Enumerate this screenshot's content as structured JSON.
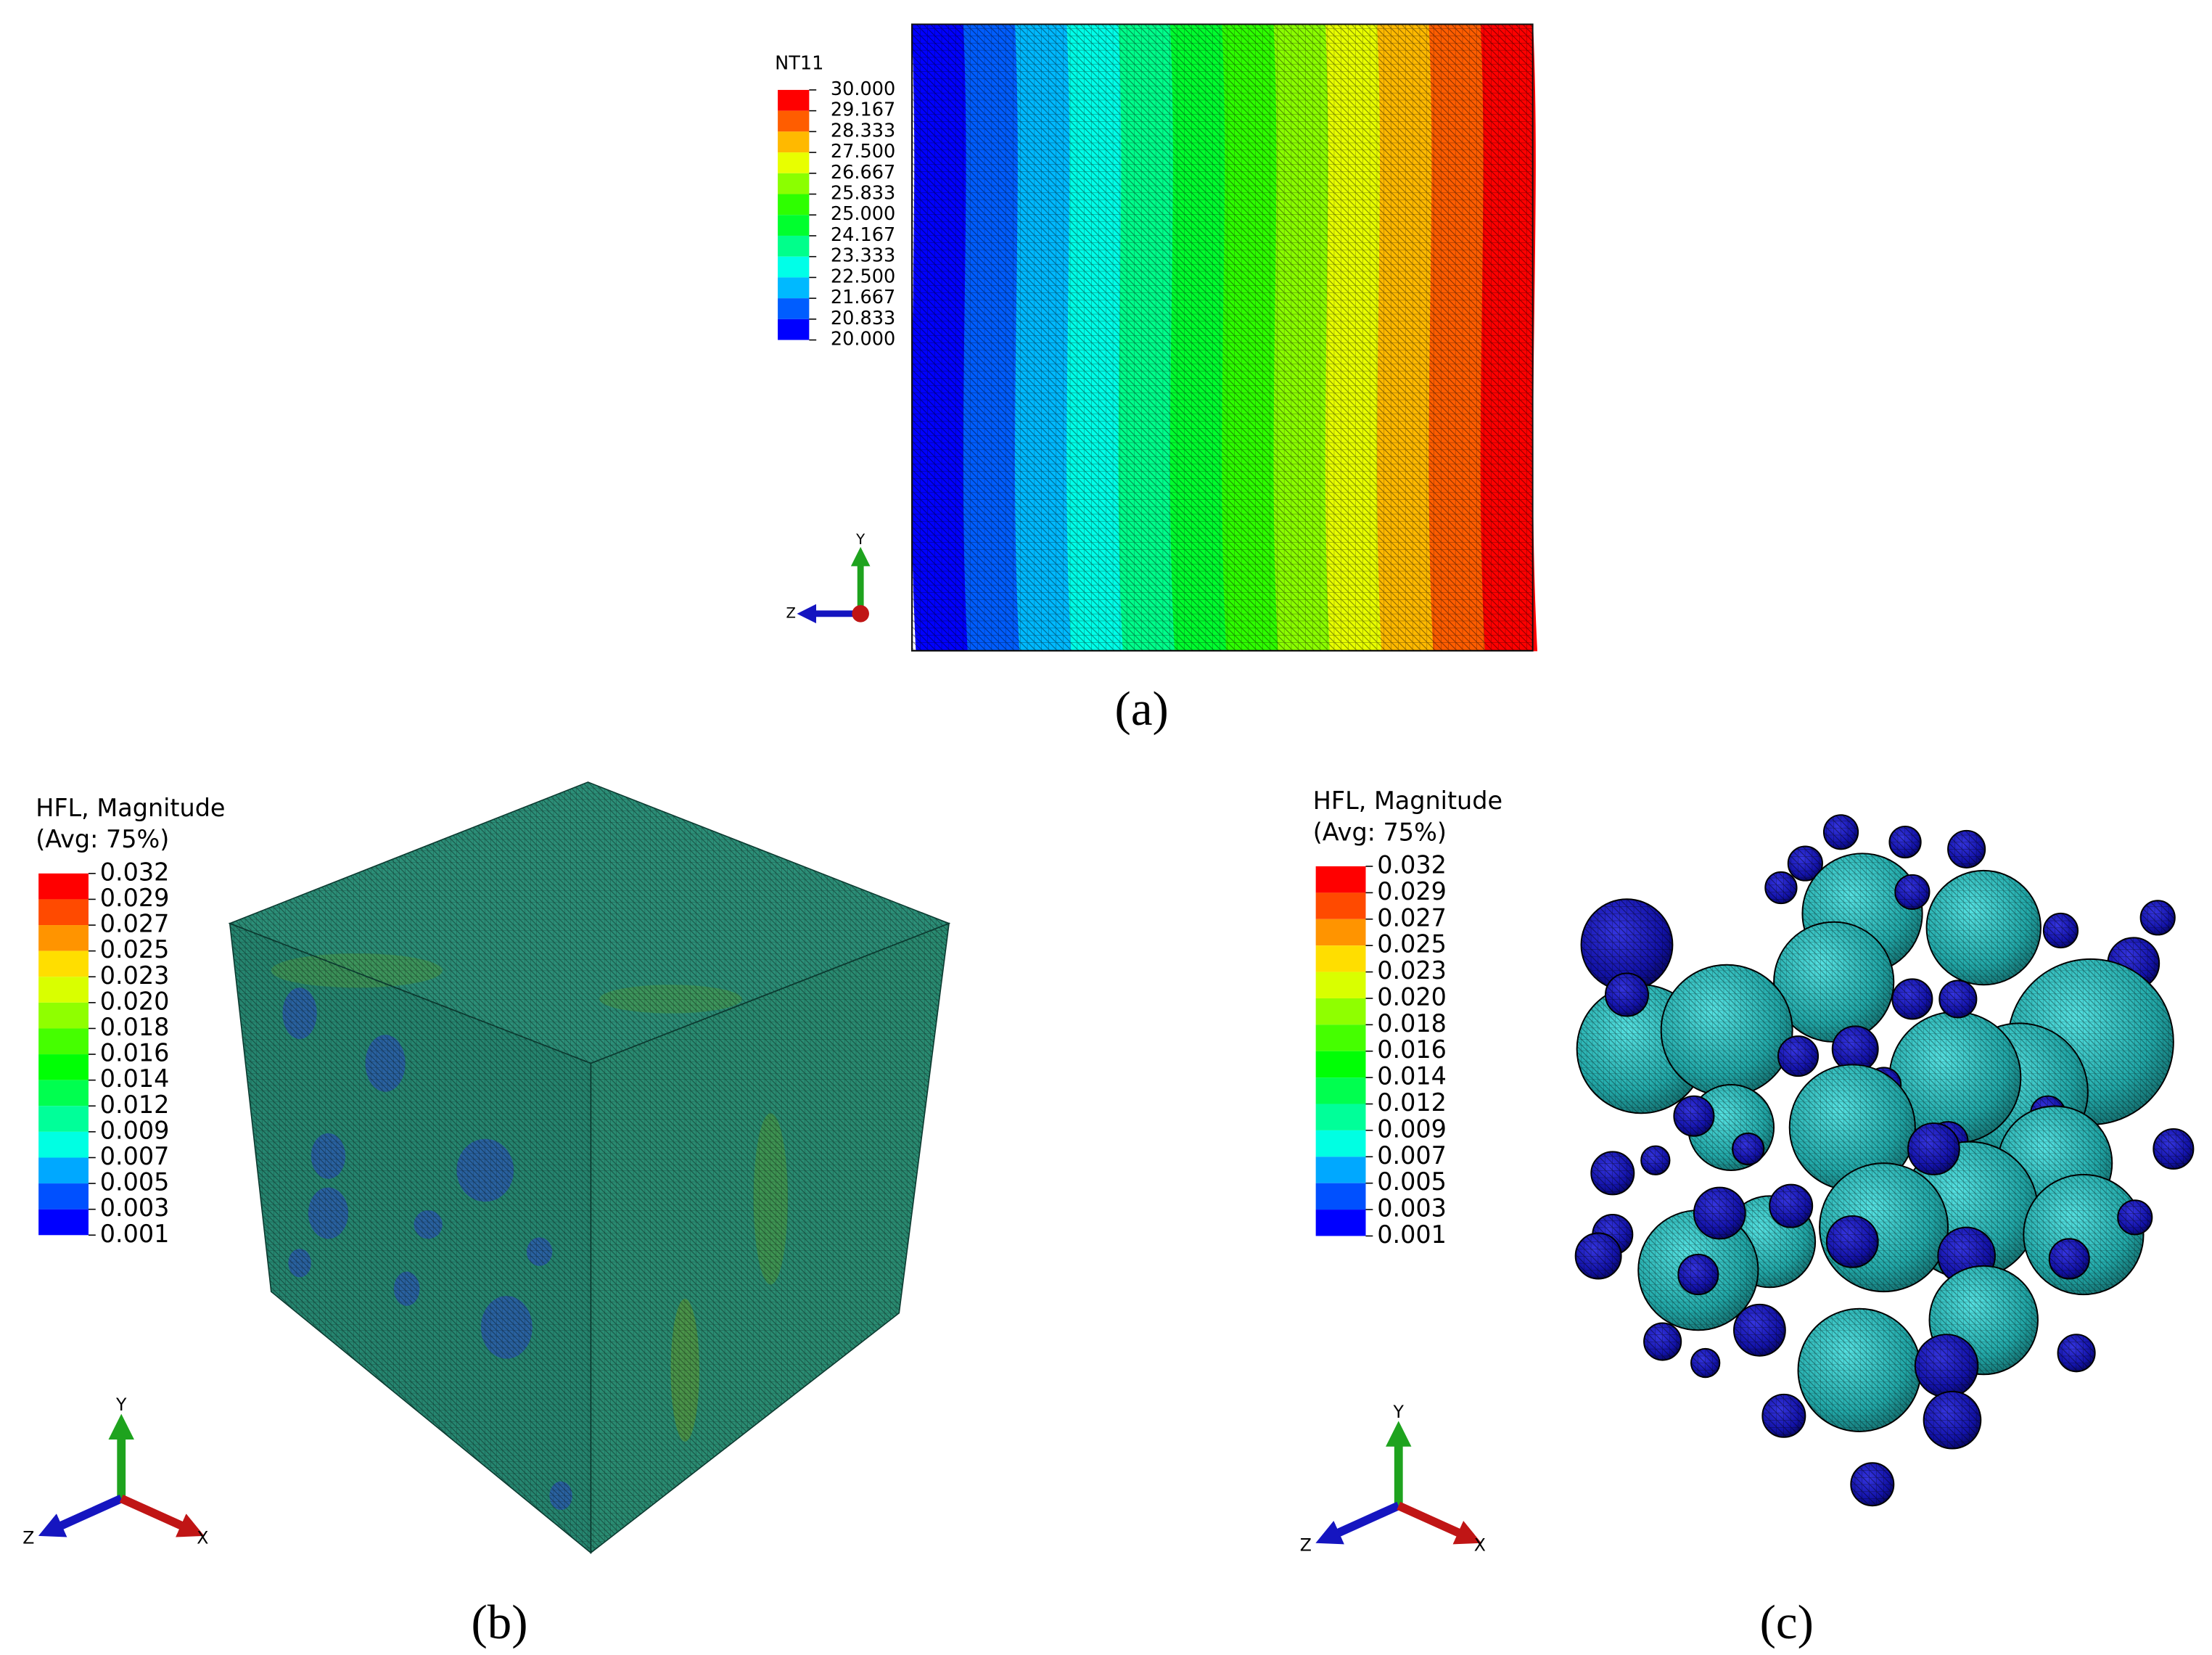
{
  "figure": {
    "panels": [
      {
        "legend_title": [
          "NT11"
        ],
        "legend_labels": [
          "30.000",
          "29.167",
          "28.333",
          "27.500",
          "26.667",
          "25.833",
          "25.000",
          "24.167",
          "23.333",
          "22.500",
          "21.667",
          "20.833",
          "20.000"
        ],
        "legend_colors": [
          "#ff0000",
          "#ff5d00",
          "#ffb900",
          "#e8ff00",
          "#8bff00",
          "#2eff00",
          "#00ff2e",
          "#00ff8b",
          "#00ffe8",
          "#00b9ff",
          "#005dff",
          "#0000ff"
        ],
        "axes": [
          "Y",
          "Z"
        ],
        "caption": "(a)"
      },
      {
        "legend_title": [
          "HFL, Magnitude",
          "(Avg: 75%)"
        ],
        "legend_labels": [
          "0.032",
          "0.029",
          "0.027",
          "0.025",
          "0.023",
          "0.020",
          "0.018",
          "0.016",
          "0.014",
          "0.012",
          "0.009",
          "0.007",
          "0.005",
          "0.003",
          "0.001"
        ],
        "legend_colors": [
          "#ff0000",
          "#ff4a00",
          "#ff9400",
          "#ffde00",
          "#d9ff00",
          "#8fff00",
          "#45ff00",
          "#00ff05",
          "#00ff4f",
          "#00ff99",
          "#00ffe3",
          "#00a8ff",
          "#0050ff",
          "#0000ff"
        ],
        "axes": [
          "Y",
          "Z",
          "X"
        ],
        "caption": "(b)"
      },
      {
        "legend_title": [
          "HFL, Magnitude",
          "(Avg: 75%)"
        ],
        "legend_labels": [
          "0.032",
          "0.029",
          "0.027",
          "0.025",
          "0.023",
          "0.020",
          "0.018",
          "0.016",
          "0.014",
          "0.012",
          "0.009",
          "0.007",
          "0.005",
          "0.003",
          "0.001"
        ],
        "legend_colors": [
          "#ff0000",
          "#ff4a00",
          "#ff9400",
          "#ffde00",
          "#d9ff00",
          "#8fff00",
          "#45ff00",
          "#00ff05",
          "#00ff4f",
          "#00ff99",
          "#00ffe3",
          "#00a8ff",
          "#0050ff",
          "#0000ff"
        ],
        "axes": [
          "Y",
          "Z",
          "X"
        ],
        "caption": "(c)"
      }
    ]
  }
}
